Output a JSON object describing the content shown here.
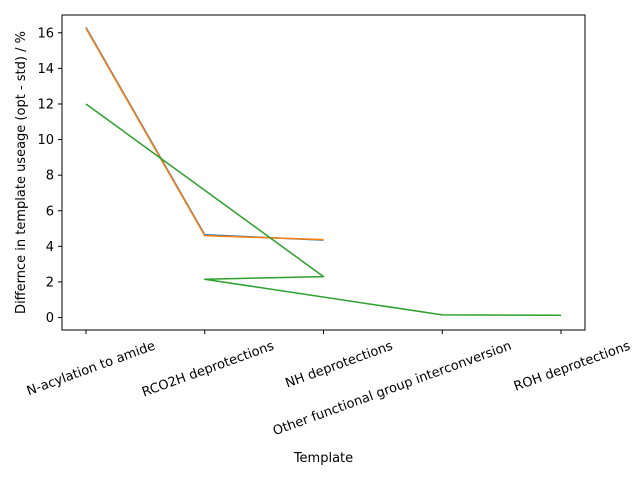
{
  "chart_data": {
    "type": "line",
    "title": "",
    "xlabel": "Template",
    "ylabel": "Differnce in template useage (opt - std) / %",
    "categories": [
      "N-acylation to amide",
      "RCO2H deprotections",
      "NH deprotections",
      "Other functional group interconversion",
      "ROH deprotections"
    ],
    "ylim": [
      -0.7,
      17.0
    ],
    "yticks": [
      0,
      2,
      4,
      6,
      8,
      10,
      12,
      14,
      16
    ],
    "grid": false,
    "series": [
      {
        "color": "#1f77b4",
        "points": [
          [
            0,
            16.3
          ],
          [
            1,
            4.65
          ],
          [
            2,
            4.35
          ]
        ]
      },
      {
        "color": "#ff7f0e",
        "points": [
          [
            0,
            16.25
          ],
          [
            1,
            4.6
          ],
          [
            2,
            4.38
          ]
        ]
      },
      {
        "color": "#2ca02c",
        "points": [
          [
            0,
            12.0
          ],
          [
            2,
            2.3
          ],
          [
            1,
            2.15
          ],
          [
            3,
            0.15
          ],
          [
            4,
            0.13
          ]
        ]
      }
    ]
  }
}
